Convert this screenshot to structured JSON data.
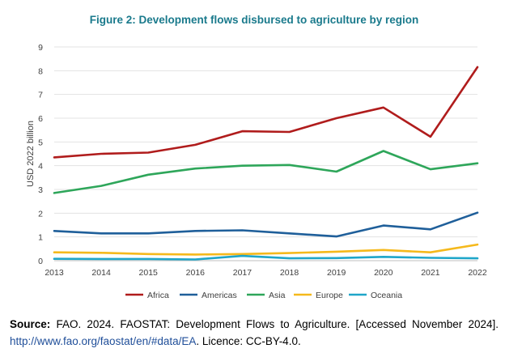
{
  "chart_data": {
    "type": "line",
    "title": "Figure 2: Development flows disbursed to agriculture by region",
    "ylabel": "USD 2022 billion",
    "xlabel": "",
    "x": [
      "2013",
      "2014",
      "2015",
      "2016",
      "2017",
      "2018",
      "2019",
      "2020",
      "2021",
      "2022"
    ],
    "ylim": [
      0,
      9
    ],
    "yticks": [
      "0",
      "1",
      "2",
      "3",
      "4",
      "5",
      "6",
      "7",
      "8",
      "9"
    ],
    "grid": true,
    "legend_position": "bottom",
    "series": [
      {
        "name": "Africa",
        "color": "#b01c1c",
        "values": [
          4.35,
          4.5,
          4.55,
          4.88,
          5.45,
          5.42,
          6.0,
          6.45,
          5.22,
          8.15
        ]
      },
      {
        "name": "Americas",
        "color": "#1f5f9a",
        "values": [
          1.25,
          1.15,
          1.15,
          1.25,
          1.28,
          1.15,
          1.02,
          1.48,
          1.32,
          2.02
        ]
      },
      {
        "name": "Asia",
        "color": "#2ea65a",
        "values": [
          2.85,
          3.15,
          3.62,
          3.88,
          4.0,
          4.03,
          3.75,
          4.62,
          3.85,
          4.1
        ]
      },
      {
        "name": "Europe",
        "color": "#f5b91c",
        "values": [
          0.35,
          0.33,
          0.28,
          0.26,
          0.28,
          0.32,
          0.38,
          0.45,
          0.35,
          0.68
        ]
      },
      {
        "name": "Oceania",
        "color": "#1fa6c9",
        "values": [
          0.08,
          0.07,
          0.07,
          0.05,
          0.2,
          0.1,
          0.11,
          0.16,
          0.12,
          0.1
        ]
      }
    ]
  },
  "source": {
    "label": "Source:",
    "text": "FAO. 2024. FAOSTAT: Development Flows to Agriculture. [Accessed November 2024].",
    "link": "http://www.fao.org/faostat/en/#data/EA",
    "licence": ". Licence: CC-BY-4.0."
  }
}
